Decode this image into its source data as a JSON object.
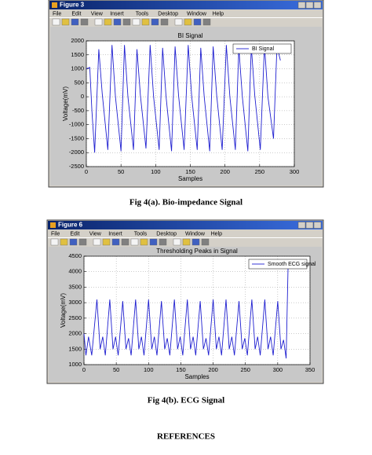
{
  "windows": [
    {
      "title": "Figure 3",
      "menu": [
        "File",
        "Edit",
        "View",
        "Insert",
        "Tools",
        "Desktop",
        "Window",
        "Help"
      ]
    },
    {
      "title": "Figure 6",
      "menu": [
        "File",
        "Edit",
        "View",
        "Insert",
        "Tools",
        "Desktop",
        "Window",
        "Help"
      ]
    }
  ],
  "chart_data": [
    {
      "type": "line",
      "title": "BI Signal",
      "x_label": "Samples",
      "y_label": "Voltage(mV)",
      "x": [
        0,
        5,
        8,
        12,
        18,
        23,
        31,
        37,
        42,
        50,
        55,
        60,
        68,
        73,
        78,
        86,
        92,
        97,
        105,
        110,
        115,
        123,
        128,
        133,
        141,
        147,
        152,
        160,
        165,
        170,
        178,
        183,
        188,
        196,
        202,
        207,
        215,
        220,
        225,
        233,
        238,
        243,
        251,
        257,
        262,
        270,
        275,
        280
      ],
      "series": [
        {
          "name": "BI Signal",
          "color": "#1f1fd0",
          "values": [
            1000,
            1050,
            -500,
            -2000,
            1700,
            100,
            -1900,
            1850,
            0,
            -1950,
            1850,
            0,
            -1900,
            1700,
            50,
            -1850,
            1850,
            0,
            -1900,
            1750,
            0,
            -1950,
            1800,
            50,
            -1900,
            1850,
            0,
            -1900,
            1750,
            0,
            -1950,
            1800,
            50,
            -1900,
            1850,
            0,
            -1900,
            1750,
            0,
            -1950,
            1800,
            50,
            -1900,
            1850,
            0,
            -1500,
            1800,
            1300
          ]
        }
      ],
      "xlim": [
        0,
        300
      ],
      "ylim": [
        -2500,
        2000
      ],
      "xticks": [
        0,
        50,
        100,
        150,
        200,
        250,
        300
      ],
      "yticks": [
        -2500,
        -2000,
        -1500,
        -1000,
        -500,
        0,
        500,
        1000,
        1500,
        2000
      ],
      "grid": true,
      "legend": "upper right"
    },
    {
      "type": "line",
      "title": "Thresholding Peaks in Signal",
      "x_label": "Samples",
      "y_label": "Voltage(mV)",
      "x": [
        0,
        3,
        7,
        12,
        20,
        25,
        29,
        33,
        40,
        45,
        49,
        53,
        60,
        65,
        69,
        73,
        80,
        85,
        89,
        93,
        100,
        105,
        109,
        113,
        120,
        125,
        129,
        133,
        140,
        145,
        149,
        153,
        160,
        165,
        169,
        173,
        180,
        185,
        189,
        193,
        200,
        205,
        209,
        213,
        220,
        225,
        229,
        233,
        240,
        245,
        249,
        253,
        260,
        265,
        269,
        273,
        280,
        285,
        289,
        293,
        300,
        305,
        309,
        313,
        316
      ],
      "series": [
        {
          "name": "Smooth ECG signal",
          "color": "#1f1fd0",
          "values": [
            2000,
            1300,
            1900,
            1300,
            3100,
            1500,
            1900,
            1300,
            3100,
            1500,
            1900,
            1300,
            3050,
            1500,
            1850,
            1300,
            3100,
            1500,
            1900,
            1300,
            3100,
            1500,
            1900,
            1300,
            3050,
            1500,
            1850,
            1300,
            3100,
            1500,
            1900,
            1300,
            3100,
            1500,
            1900,
            1300,
            3050,
            1500,
            1850,
            1300,
            3100,
            1500,
            1900,
            1300,
            3100,
            1500,
            1900,
            1300,
            3050,
            1500,
            1850,
            1300,
            3100,
            1500,
            1900,
            1300,
            3100,
            1500,
            1900,
            1300,
            3050,
            1500,
            1800,
            1200,
            4100
          ]
        }
      ],
      "xlim": [
        0,
        350
      ],
      "ylim": [
        1000,
        4500
      ],
      "xticks": [
        0,
        50,
        100,
        150,
        200,
        250,
        300,
        350
      ],
      "yticks": [
        1000,
        1500,
        2000,
        2500,
        3000,
        3500,
        4000,
        4500
      ],
      "grid": true,
      "legend": "upper right"
    }
  ],
  "captions": [
    "Fig 4(a). Bio-impedance Signal",
    "Fig 4(b). ECG Signal"
  ],
  "heading": "REFERENCES"
}
